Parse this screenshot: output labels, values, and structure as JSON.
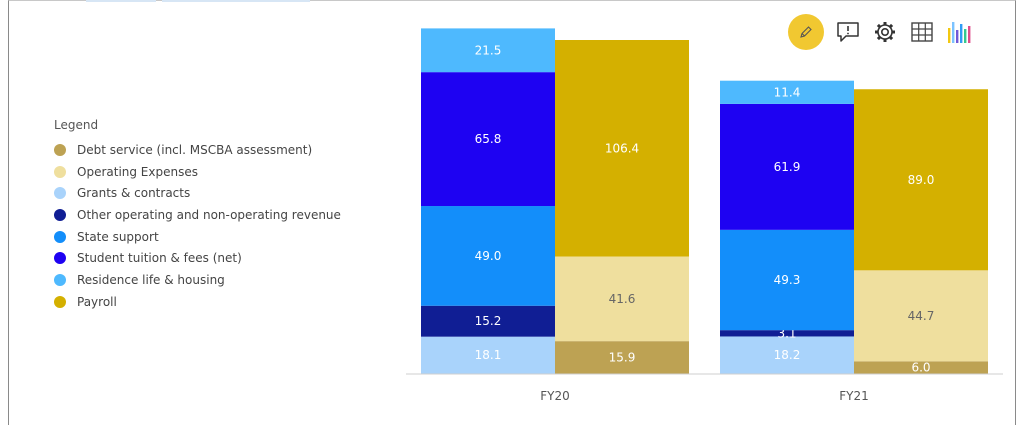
{
  "toolbar": {
    "edit_icon": "pencil-icon",
    "comment_icon": "comment-icon",
    "settings_icon": "gear-icon",
    "table_icon": "table-grid-icon",
    "chart_icon": "chart-bars-icon"
  },
  "legend": {
    "title": "Legend",
    "items": [
      {
        "label": "Debt service (incl. MSCBA assessment)",
        "color": "#bda253"
      },
      {
        "label": "Operating Expenses",
        "color": "#efdf9e"
      },
      {
        "label": "Grants & contracts",
        "color": "#a9d3fb"
      },
      {
        "label": "Other operating and non-operating revenue",
        "color": "#101e94"
      },
      {
        "label": "State support",
        "color": "#138efa"
      },
      {
        "label": "Student tuition & fees (net)",
        "color": "#1e02f2"
      },
      {
        "label": "Residence life & housing",
        "color": "#4eb9fe"
      },
      {
        "label": "Payroll",
        "color": "#d4b000"
      }
    ]
  },
  "chart_data": {
    "type": "bar",
    "stacked": true,
    "categories": [
      "FY20",
      "FY21"
    ],
    "stacks": [
      {
        "name": "revenue",
        "series": [
          {
            "name": "Grants & contracts",
            "color": "#a9d3fb",
            "values": [
              18.1,
              18.2
            ],
            "labels": [
              "18.1",
              "18.2"
            ]
          },
          {
            "name": "Other operating and non-operating revenue",
            "color": "#101e94",
            "values": [
              15.2,
              3.1
            ],
            "labels": [
              "15.2",
              "3.1"
            ]
          },
          {
            "name": "State support",
            "color": "#138efa",
            "values": [
              49.0,
              49.3
            ],
            "labels": [
              "49.0",
              "49.3"
            ]
          },
          {
            "name": "Student tuition & fees (net)",
            "color": "#1e02f2",
            "values": [
              65.8,
              61.9
            ],
            "labels": [
              "65.8",
              "61.9"
            ]
          },
          {
            "name": "Residence life & housing",
            "color": "#4eb9fe",
            "values": [
              21.5,
              11.4
            ],
            "labels": [
              "21.5",
              "11.4"
            ]
          }
        ]
      },
      {
        "name": "expenses",
        "series": [
          {
            "name": "Debt service (incl. MSCBA assessment)",
            "color": "#bda253",
            "values": [
              15.9,
              6.0
            ],
            "labels": [
              "15.9",
              "6.0"
            ]
          },
          {
            "name": "Operating Expenses",
            "color": "#efdf9e",
            "values": [
              41.6,
              44.7
            ],
            "labels": [
              "41.6",
              "44.7"
            ]
          },
          {
            "name": "Payroll",
            "color": "#d4b000",
            "values": [
              106.4,
              89.0
            ],
            "labels": [
              "106.4",
              "89.0"
            ]
          }
        ]
      }
    ],
    "ylim": [
      0,
      170
    ],
    "grid": false,
    "legend_position": "left",
    "title": "",
    "xlabel": "",
    "ylabel": ""
  }
}
